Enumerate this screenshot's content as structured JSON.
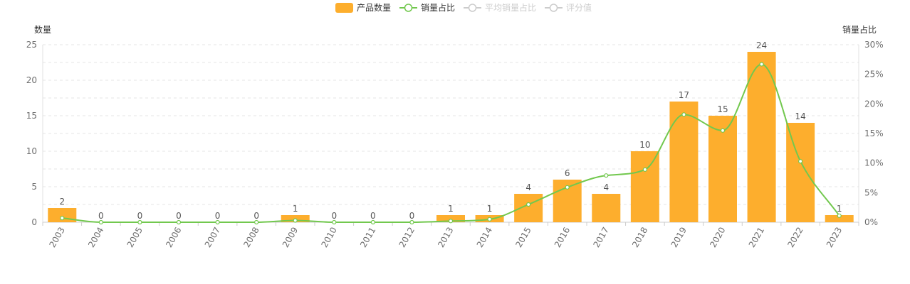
{
  "chart_data": {
    "type": "bar",
    "categories": [
      "2003",
      "2004",
      "2005",
      "2006",
      "2007",
      "2008",
      "2009",
      "2010",
      "2011",
      "2012",
      "2013",
      "2014",
      "2015",
      "2016",
      "2017",
      "2018",
      "2019",
      "2020",
      "2021",
      "2022",
      "2023"
    ],
    "series": [
      {
        "name": "产品数量",
        "type": "bar",
        "axis": "left",
        "color": "#FDAE2D",
        "values": [
          2,
          0,
          0,
          0,
          0,
          0,
          1,
          0,
          0,
          0,
          1,
          1,
          4,
          6,
          4,
          10,
          17,
          15,
          24,
          14,
          1
        ],
        "labels": [
          "2",
          "0",
          "0",
          "0",
          "0",
          "0",
          "1",
          "0",
          "0",
          "0",
          "1",
          "1",
          "4",
          "6",
          "4",
          "10",
          "17",
          "15",
          "24",
          "14",
          "1"
        ]
      },
      {
        "name": "销量占比",
        "type": "line",
        "smooth": true,
        "axis": "right",
        "color": "#72C84E",
        "values": [
          0.7,
          0,
          0,
          0,
          0,
          0,
          0.3,
          0,
          0,
          0,
          0.2,
          0.5,
          3.0,
          5.9,
          7.9,
          8.9,
          18.2,
          15.5,
          26.7,
          10.3,
          1.1
        ]
      }
    ],
    "legend": [
      {
        "name": "产品数量",
        "kind": "bar",
        "active": true,
        "color": "#FDAE2D"
      },
      {
        "name": "销量占比",
        "kind": "line",
        "active": true,
        "color": "#72C84E"
      },
      {
        "name": "平均销量占比",
        "kind": "line",
        "active": false,
        "color": "#cccccc"
      },
      {
        "name": "评分值",
        "kind": "line",
        "active": false,
        "color": "#cccccc"
      }
    ],
    "legend_position": "top-center",
    "yAxisLeft": {
      "name": "数量",
      "min": 0,
      "max": 25,
      "ticks": [
        0,
        5,
        10,
        15,
        20,
        25
      ],
      "tick_labels": [
        "0",
        "5",
        "10",
        "15",
        "20",
        "25"
      ]
    },
    "yAxisRight": {
      "name": "销量占比",
      "min": 0,
      "max": 30,
      "ticks": [
        0,
        5,
        10,
        15,
        20,
        25,
        30
      ],
      "tick_labels": [
        "0%",
        "5%",
        "10%",
        "15%",
        "20%",
        "25%",
        "30%"
      ]
    },
    "grid": true
  }
}
